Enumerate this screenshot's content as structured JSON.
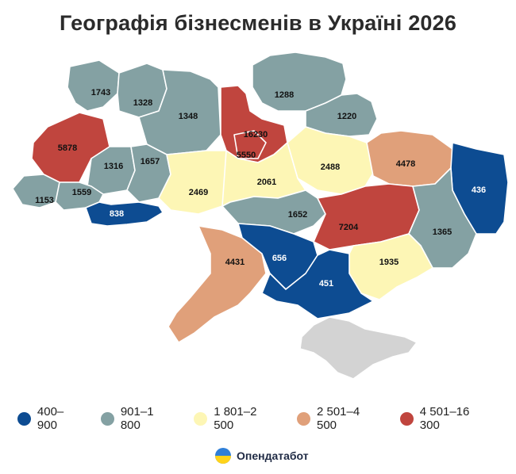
{
  "title": "Географія бізнесменів в Україні 2026",
  "colors": {
    "c1": "#0d4c92",
    "c2": "#84a1a3",
    "c3": "#fdf6b5",
    "c4": "#e0a07a",
    "c5": "#c0453e",
    "crimea": "#d3d3d3"
  },
  "legend": [
    {
      "label": "400–900",
      "color_key": "c1"
    },
    {
      "label": "901–1 800",
      "color_key": "c2"
    },
    {
      "label": "1 801–2 500",
      "color_key": "c3"
    },
    {
      "label": "2 501–4 500",
      "color_key": "c4"
    },
    {
      "label": "4 501–16 300",
      "color_key": "c5"
    }
  ],
  "regions": [
    {
      "value": "1743",
      "class": "c2"
    },
    {
      "value": "1328",
      "class": "c2"
    },
    {
      "value": "1348",
      "class": "c2"
    },
    {
      "value": "1288",
      "class": "c2"
    },
    {
      "value": "1220",
      "class": "c2"
    },
    {
      "value": "16230",
      "class": "c5"
    },
    {
      "value": "5550",
      "class": "c5"
    },
    {
      "value": "5878",
      "class": "c5"
    },
    {
      "value": "1316",
      "class": "c2"
    },
    {
      "value": "1657",
      "class": "c2"
    },
    {
      "value": "2488",
      "class": "c3"
    },
    {
      "value": "4478",
      "class": "c4"
    },
    {
      "value": "1153",
      "class": "c2"
    },
    {
      "value": "1559",
      "class": "c2"
    },
    {
      "value": "2469",
      "class": "c3"
    },
    {
      "value": "2061",
      "class": "c3"
    },
    {
      "value": "436",
      "class": "c1"
    },
    {
      "value": "838",
      "class": "c1"
    },
    {
      "value": "1652",
      "class": "c2"
    },
    {
      "value": "7204",
      "class": "c5"
    },
    {
      "value": "1365",
      "class": "c2"
    },
    {
      "value": "4431",
      "class": "c4"
    },
    {
      "value": "656",
      "class": "c1"
    },
    {
      "value": "1935",
      "class": "c3"
    },
    {
      "value": "451",
      "class": "c1"
    }
  ],
  "brand": {
    "name": "Опендатабот",
    "logo_icon": "opendatabot-logo-icon"
  }
}
